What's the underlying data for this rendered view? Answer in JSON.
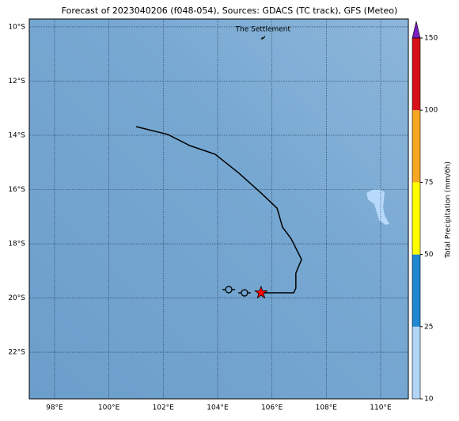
{
  "chart_data": {
    "type": "map",
    "title": "Forecast of 2023040206 (f048-054), Sources: GDACS (TC track), GFS (Meteo)",
    "xlim": [
      97.07,
      111.02
    ],
    "ylim": [
      -23.72,
      -9.71
    ],
    "xticks": [
      {
        "value": 98,
        "label": "98°E"
      },
      {
        "value": 100,
        "label": "100°E"
      },
      {
        "value": 102,
        "label": "102°E"
      },
      {
        "value": 104,
        "label": "104°E"
      },
      {
        "value": 106,
        "label": "106°E"
      },
      {
        "value": 108,
        "label": "108°E"
      },
      {
        "value": 110,
        "label": "110°E"
      }
    ],
    "yticks": [
      {
        "value": -10,
        "label": "10°S"
      },
      {
        "value": -12,
        "label": "12°S"
      },
      {
        "value": -14,
        "label": "14°S"
      },
      {
        "value": -16,
        "label": "16°S"
      },
      {
        "value": -18,
        "label": "18°S"
      },
      {
        "value": -20,
        "label": "20°S"
      },
      {
        "value": -22,
        "label": "22°S"
      }
    ],
    "grid": true,
    "track": {
      "color": "#000000",
      "lon": [
        101.0,
        102.17,
        102.98,
        103.91,
        104.79,
        105.6,
        106.19,
        106.39,
        106.71,
        107.09,
        106.88,
        106.88,
        106.8,
        105.6
      ],
      "lat": [
        -13.68,
        -13.97,
        -14.38,
        -14.7,
        -15.4,
        -16.13,
        -16.69,
        -17.39,
        -17.82,
        -18.58,
        -19.08,
        -19.64,
        -19.81,
        -19.81
      ]
    },
    "storm_symbols": {
      "lon": [
        104.41,
        104.99
      ],
      "lat": [
        -19.69,
        -19.81
      ]
    },
    "current_position": {
      "lon": 105.6,
      "lat": -19.81,
      "color": "#ff0000"
    },
    "place": {
      "label": "The Settlement",
      "lon": 105.67,
      "lat": -10.41
    },
    "colorbar": {
      "label": "Total Precipitation (mm/6h)",
      "levels": [
        10,
        25,
        50,
        75,
        100,
        150
      ],
      "colors": [
        "#b3d5f5",
        "#1f88d2",
        "#ffff00",
        "#f5a623",
        "#d7101a"
      ],
      "extend_color": "#7b1fc0"
    }
  }
}
